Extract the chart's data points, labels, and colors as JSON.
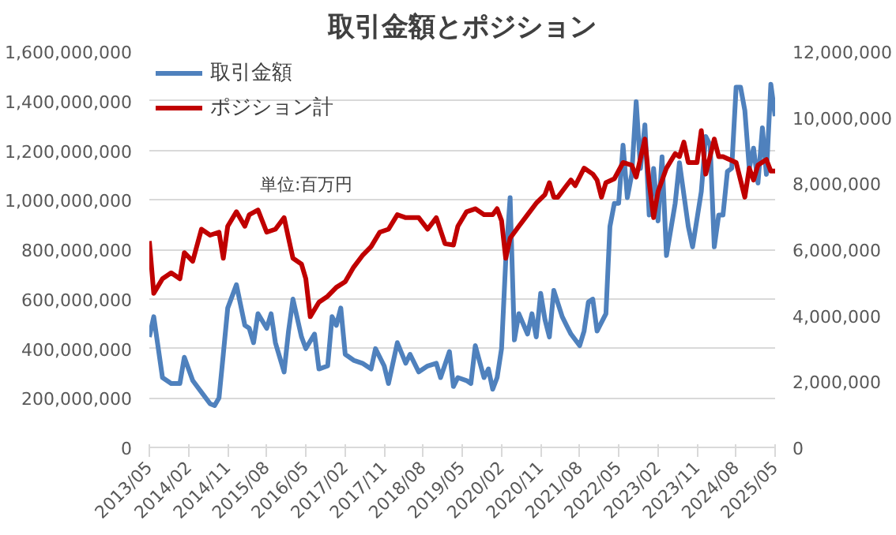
{
  "chart_data": {
    "type": "line",
    "title": "取引金額とポジション",
    "annotations": [
      "単位:百万円"
    ],
    "legend": "top left",
    "grid": "y",
    "marker": "none",
    "line_style": "solid",
    "xlim": [
      "2013-05",
      "2025-05"
    ],
    "xticks": [
      {
        "value": "2013-05",
        "label": "2013/05"
      },
      {
        "value": "2014-02",
        "label": "2014/02"
      },
      {
        "value": "2014-11",
        "label": "2014/11"
      },
      {
        "value": "2015-08",
        "label": "2015/08"
      },
      {
        "value": "2016-05",
        "label": "2016/05"
      },
      {
        "value": "2017-02",
        "label": "2017/02"
      },
      {
        "value": "2017-11",
        "label": "2017/11"
      },
      {
        "value": "2018-08",
        "label": "2018/08"
      },
      {
        "value": "2019-05",
        "label": "2019/05"
      },
      {
        "value": "2020-02",
        "label": "2020/02"
      },
      {
        "value": "2020-11",
        "label": "2020/11"
      },
      {
        "value": "2021-08",
        "label": "2021/08"
      },
      {
        "value": "2022-05",
        "label": "2022/05"
      },
      {
        "value": "2023-02",
        "label": "2023/02"
      },
      {
        "value": "2023-11",
        "label": "2023/11"
      },
      {
        "value": "2024-08",
        "label": "2024/08"
      },
      {
        "value": "2025-05",
        "label": "2025/05"
      }
    ],
    "ylim": [
      0,
      1600000000
    ],
    "yticks": [
      0,
      {
        "value": 200000000,
        "label": "200,000,000"
      },
      {
        "value": 400000000,
        "label": "400,000,000"
      },
      {
        "value": 600000000,
        "label": "600,000,000"
      },
      {
        "value": 800000000,
        "label": "800,000,000"
      },
      {
        "value": 1000000000,
        "label": "1,000,000,000"
      },
      {
        "value": 1200000000,
        "label": "1,200,000,000"
      },
      {
        "value": 1400000000,
        "label": "1,400,000,000"
      },
      {
        "value": 1600000000,
        "label": "1,600,000,000"
      }
    ],
    "y2lim": [
      0,
      12000000
    ],
    "y2ticks": [
      0,
      {
        "value": 2000000,
        "label": "2,000,000"
      },
      {
        "value": 4000000,
        "label": "4,000,000"
      },
      {
        "value": 6000000,
        "label": "6,000,000"
      },
      {
        "value": 8000000,
        "label": "8,000,000"
      },
      {
        "value": 10000000,
        "label": "10,000,000"
      },
      {
        "value": 12000000,
        "label": "12,000,000"
      }
    ],
    "series": [
      {
        "name": "取引金額",
        "color": "#4f81bd",
        "x": [
          "2013-05",
          "2013-06",
          "2013-08",
          "2013-10",
          "2013-12",
          "2014-01",
          "2014-03",
          "2014-07",
          "2014-08",
          "2014-09",
          "2014-10",
          "2014-11",
          "2015-01",
          "2015-03",
          "2015-04",
          "2015-05",
          "2015-06",
          "2015-08",
          "2015-09",
          "2015-10",
          "2015-12",
          "2016-01",
          "2016-02",
          "2016-04",
          "2016-05",
          "2016-07",
          "2016-08",
          "2016-10",
          "2016-11",
          "2016-12",
          "2017-01",
          "2017-02",
          "2017-04",
          "2017-06",
          "2017-08",
          "2017-09",
          "2017-11",
          "2017-12",
          "2018-02",
          "2018-04",
          "2018-05",
          "2018-07",
          "2018-09",
          "2018-11",
          "2018-12",
          "2019-02",
          "2019-03",
          "2019-04",
          "2019-06",
          "2019-07",
          "2019-08",
          "2019-10",
          "2019-11",
          "2019-12",
          "2020-01",
          "2020-02",
          "2020-03",
          "2020-04",
          "2020-05",
          "2020-06",
          "2020-08",
          "2020-09",
          "2020-10",
          "2020-11",
          "2020-12",
          "2021-01",
          "2021-02",
          "2021-04",
          "2021-05",
          "2021-06",
          "2021-08",
          "2021-09",
          "2021-10",
          "2021-11",
          "2021-12",
          "2022-02",
          "2022-03",
          "2022-04",
          "2022-05",
          "2022-06",
          "2022-07",
          "2022-08",
          "2022-09",
          "2022-10",
          "2022-11",
          "2022-12",
          "2023-01",
          "2023-02",
          "2023-03",
          "2023-04",
          "2023-06",
          "2023-07",
          "2023-09",
          "2023-10",
          "2023-12",
          "2024-01",
          "2024-02",
          "2024-03",
          "2024-04",
          "2024-05",
          "2024-06",
          "2024-07",
          "2024-08",
          "2024-09",
          "2024-10",
          "2024-11",
          "2024-12",
          "2025-01",
          "2025-02",
          "2025-03",
          "2025-04",
          "2025-05"
        ],
        "values": [
          446000000,
          528000000,
          282000000,
          258000000,
          258000000,
          364000000,
          270000000,
          176000000,
          169000000,
          200000000,
          376000000,
          563000000,
          657000000,
          493000000,
          481000000,
          423000000,
          540000000,
          481000000,
          540000000,
          423000000,
          305000000,
          470000000,
          599000000,
          446000000,
          399000000,
          458000000,
          317000000,
          329000000,
          528000000,
          493000000,
          563000000,
          376000000,
          352000000,
          340000000,
          317000000,
          399000000,
          329000000,
          258000000,
          423000000,
          340000000,
          376000000,
          305000000,
          329000000,
          340000000,
          282000000,
          387000000,
          246000000,
          282000000,
          270000000,
          258000000,
          411000000,
          282000000,
          317000000,
          235000000,
          282000000,
          399000000,
          751000000,
          1009000000,
          434000000,
          540000000,
          458000000,
          540000000,
          446000000,
          622000000,
          516000000,
          446000000,
          634000000,
          528000000,
          493000000,
          458000000,
          411000000,
          470000000,
          587000000,
          599000000,
          470000000,
          540000000,
          892000000,
          986000000,
          986000000,
          1221000000,
          1009000000,
          1103000000,
          1397000000,
          1127000000,
          1303000000,
          939000000,
          1127000000,
          915000000,
          1174000000,
          775000000,
          986000000,
          1150000000,
          892000000,
          810000000,
          1033000000,
          1256000000,
          1221000000,
          810000000,
          939000000,
          939000000,
          1115000000,
          1127000000,
          1455000000,
          1455000000,
          1361000000,
          1127000000,
          1209000000,
          1068000000,
          1291000000,
          1103000000,
          1467000000,
          1338000000
        ]
      },
      {
        "name": "ポジション計",
        "color": "#c00000",
        "axis": "y2",
        "x": [
          "2013-05",
          "2013-06",
          "2013-08",
          "2013-10",
          "2013-12",
          "2014-01",
          "2014-03",
          "2014-05",
          "2014-07",
          "2014-09",
          "2014-10",
          "2014-11",
          "2015-01",
          "2015-03",
          "2015-04",
          "2015-06",
          "2015-08",
          "2015-10",
          "2015-12",
          "2016-01",
          "2016-02",
          "2016-04",
          "2016-05",
          "2016-06",
          "2016-08",
          "2016-10",
          "2016-12",
          "2017-02",
          "2017-04",
          "2017-06",
          "2017-08",
          "2017-10",
          "2017-12",
          "2018-02",
          "2018-04",
          "2018-07",
          "2018-09",
          "2018-11",
          "2019-01",
          "2019-03",
          "2019-04",
          "2019-06",
          "2019-08",
          "2019-10",
          "2019-12",
          "2020-01",
          "2020-02",
          "2020-03",
          "2020-04",
          "2020-06",
          "2020-08",
          "2020-10",
          "2020-12",
          "2021-01",
          "2021-02",
          "2021-03",
          "2021-05",
          "2021-06",
          "2021-07",
          "2021-09",
          "2021-11",
          "2021-12",
          "2022-01",
          "2022-02",
          "2022-04",
          "2022-06",
          "2022-08",
          "2022-09",
          "2022-11",
          "2022-12",
          "2023-01",
          "2023-02",
          "2023-04",
          "2023-06",
          "2023-07",
          "2023-08",
          "2023-09",
          "2023-11",
          "2023-12",
          "2024-01",
          "2024-03",
          "2024-04",
          "2024-05",
          "2024-08",
          "2024-10",
          "2024-11",
          "2024-12",
          "2025-01",
          "2025-03",
          "2025-04",
          "2025-05"
        ],
        "values": [
          6250000,
          4670000,
          5110000,
          5290000,
          5110000,
          5900000,
          5640000,
          6610000,
          6430000,
          6520000,
          5730000,
          6700000,
          7140000,
          6700000,
          7050000,
          7190000,
          6520000,
          6610000,
          6960000,
          6340000,
          5730000,
          5550000,
          5110000,
          3960000,
          4400000,
          4580000,
          4850000,
          5020000,
          5460000,
          5810000,
          6080000,
          6520000,
          6610000,
          7050000,
          6960000,
          6960000,
          6610000,
          6960000,
          6170000,
          6130000,
          6700000,
          7140000,
          7230000,
          7050000,
          7050000,
          7230000,
          6870000,
          5730000,
          6340000,
          6700000,
          7050000,
          7400000,
          7660000,
          8020000,
          7580000,
          7580000,
          7930000,
          8100000,
          7930000,
          8460000,
          8280000,
          8100000,
          7580000,
          8020000,
          8140000,
          8630000,
          8550000,
          8190000,
          9340000,
          8020000,
          6960000,
          7750000,
          8460000,
          8900000,
          8810000,
          9250000,
          8630000,
          8630000,
          9600000,
          8280000,
          9340000,
          8810000,
          8810000,
          8630000,
          7580000,
          8460000,
          8100000,
          8550000,
          8720000,
          8370000,
          8370000
        ]
      }
    ]
  }
}
